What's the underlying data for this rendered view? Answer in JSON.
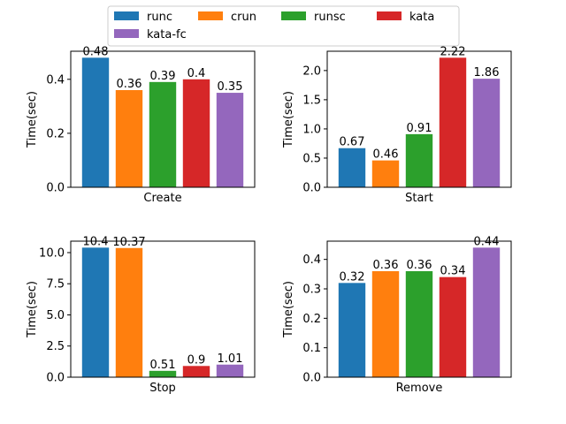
{
  "chart_data": {
    "type": "bar",
    "legend": {
      "placement": "top-center",
      "entries": [
        {
          "name": "runc",
          "color": "#1f77b4"
        },
        {
          "name": "crun",
          "color": "#ff7f0e"
        },
        {
          "name": "runsc",
          "color": "#2ca02c"
        },
        {
          "name": "kata",
          "color": "#d62728"
        },
        {
          "name": "kata-fc",
          "color": "#9467bd"
        }
      ]
    },
    "panels": [
      {
        "xlabel": "Create",
        "ylabel": "Time(sec)",
        "ylim": [
          0,
          0.504
        ],
        "yticks": [
          0.0,
          0.2,
          0.4
        ],
        "ytick_labels": [
          "0.0",
          "0.2",
          "0.4"
        ],
        "values": [
          0.48,
          0.36,
          0.39,
          0.4,
          0.35
        ],
        "value_labels": [
          "0.48",
          "0.36",
          "0.39",
          "0.4",
          "0.35"
        ]
      },
      {
        "xlabel": "Start",
        "ylabel": "Time(sec)",
        "ylim": [
          0,
          2.331
        ],
        "yticks": [
          0.0,
          0.5,
          1.0,
          1.5,
          2.0
        ],
        "ytick_labels": [
          "0.0",
          "0.5",
          "1.0",
          "1.5",
          "2.0"
        ],
        "values": [
          0.67,
          0.46,
          0.91,
          2.22,
          1.86
        ],
        "value_labels": [
          "0.67",
          "0.46",
          "0.91",
          "2.22",
          "1.86"
        ]
      },
      {
        "xlabel": "Stop",
        "ylabel": "Time(sec)",
        "ylim": [
          0,
          10.92
        ],
        "yticks": [
          0.0,
          2.5,
          5.0,
          7.5,
          10.0
        ],
        "ytick_labels": [
          "0.0",
          "2.5",
          "5.0",
          "7.5",
          "10.0"
        ],
        "values": [
          10.4,
          10.37,
          0.51,
          0.9,
          1.01
        ],
        "value_labels": [
          "10.4",
          "10.37",
          "0.51",
          "0.9",
          "1.01"
        ]
      },
      {
        "xlabel": "Remove",
        "ylabel": "Time(sec)",
        "ylim": [
          0,
          0.462
        ],
        "yticks": [
          0.0,
          0.1,
          0.2,
          0.3,
          0.4
        ],
        "ytick_labels": [
          "0.0",
          "0.1",
          "0.2",
          "0.3",
          "0.4"
        ],
        "values": [
          0.32,
          0.36,
          0.36,
          0.34,
          0.44
        ],
        "value_labels": [
          "0.32",
          "0.36",
          "0.36",
          "0.34",
          "0.44"
        ]
      }
    ],
    "grid": false
  }
}
